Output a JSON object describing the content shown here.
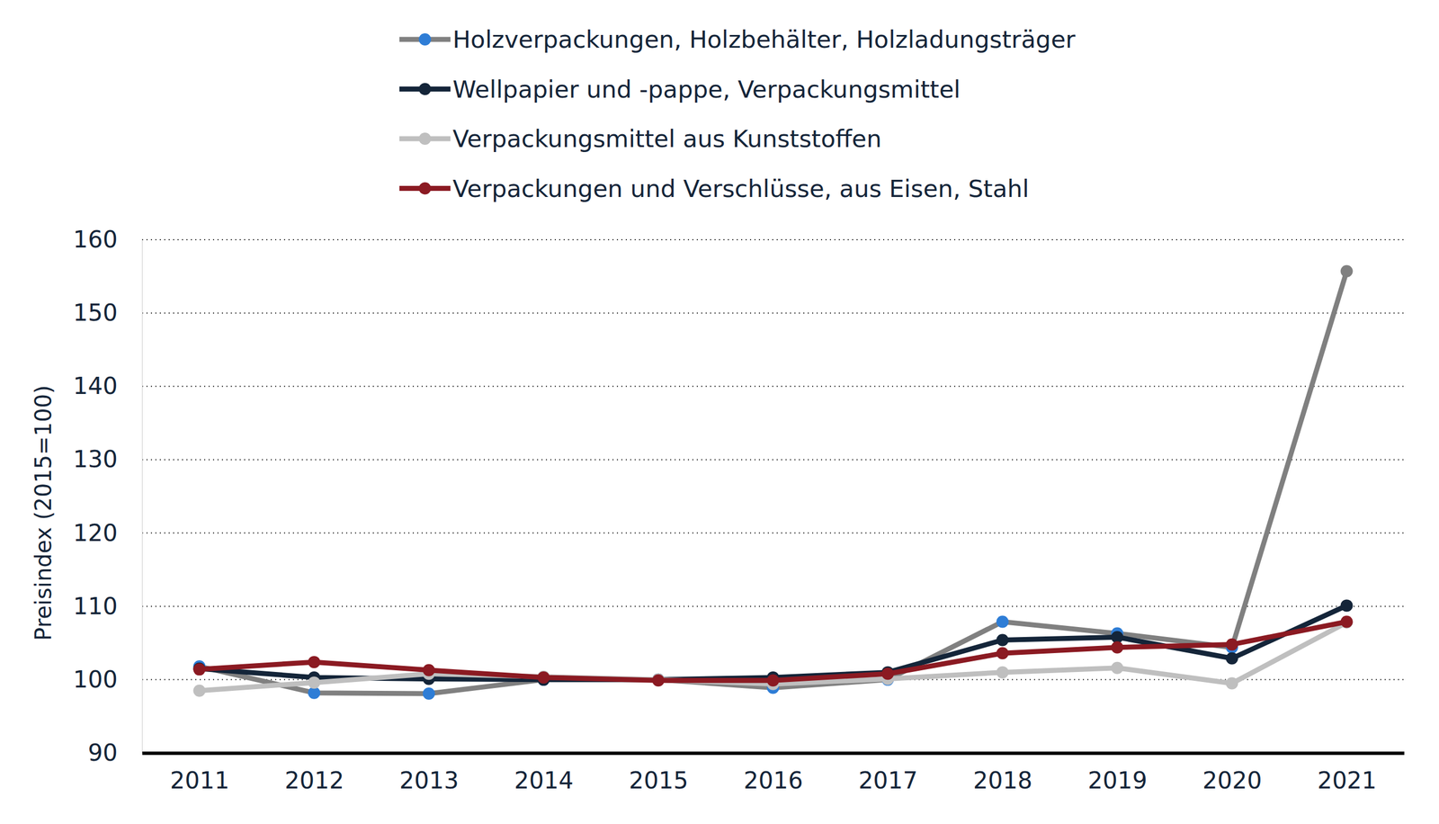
{
  "chart_data": {
    "type": "line",
    "y_label": "Preisindex (2015=100)",
    "x": [
      2011,
      2012,
      2013,
      2014,
      2015,
      2016,
      2017,
      2018,
      2019,
      2020,
      2021
    ],
    "xlim": [
      2010.5,
      2021.5
    ],
    "xticks": [
      2011,
      2012,
      2013,
      2014,
      2015,
      2016,
      2017,
      2018,
      2019,
      2020,
      2021
    ],
    "ylim": [
      90,
      160
    ],
    "yticks": [
      90,
      100,
      110,
      120,
      130,
      140,
      150,
      160
    ],
    "grid": true,
    "legend": "top",
    "series": [
      {
        "name": "Holzverpackungen, Holzbehälter, Holzladungsträger",
        "color": "#808080",
        "marker": "circle",
        "colors": [
          "#2e7dd6",
          "#2e7dd6",
          "#2e7dd6",
          "#2e7dd6",
          "#2e7dd6",
          "#2e7dd6",
          "#2e7dd6",
          "#2e7dd6",
          "#2e7dd6",
          "#2e7dd6",
          "#808080"
        ],
        "values": [
          101.8,
          98.2,
          98.1,
          100.0,
          100.0,
          98.9,
          100.0,
          107.9,
          106.3,
          104.4,
          155.7
        ]
      },
      {
        "name": "Wellpapier und -pappe, Verpackungsmittel",
        "color": "#142539",
        "marker": "circle",
        "values": [
          101.5,
          100.3,
          100.1,
          100.0,
          100.0,
          100.3,
          101.0,
          105.4,
          105.8,
          102.9,
          110.1
        ]
      },
      {
        "name": "Verpackungsmittel aus Kunststoffen",
        "color": "#bfbfbf",
        "marker": "circle",
        "values": [
          98.5,
          99.6,
          100.8,
          100.4,
          100.0,
          99.4,
          100.1,
          101.0,
          101.6,
          99.5,
          107.8
        ]
      },
      {
        "name": "Verpackungen und Verschlüsse, aus Eisen, Stahl",
        "color": "#8b1a22",
        "marker": "circle",
        "values": [
          101.4,
          102.4,
          101.3,
          100.3,
          99.9,
          99.9,
          100.8,
          103.6,
          104.4,
          104.8,
          107.9
        ]
      }
    ]
  }
}
